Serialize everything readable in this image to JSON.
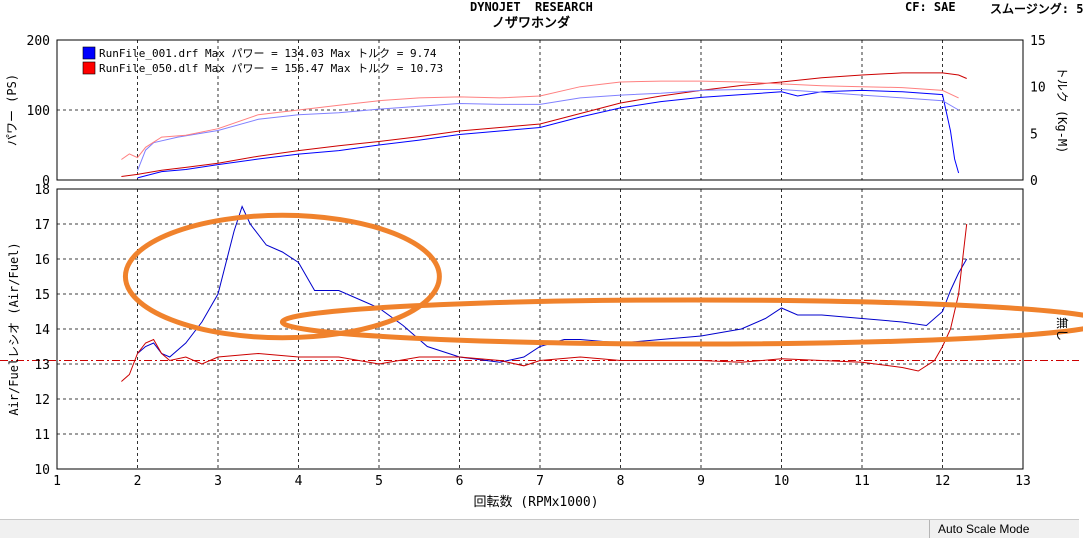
{
  "header": {
    "title": "DYNOJET  RESEARCH",
    "subtitle": "ノザワホンダ",
    "cf_label": "CF: SAE",
    "smoothing_label": "スムージング: 5"
  },
  "legend": [
    {
      "text": "RunFile_001.drf Max パワー = 134.03   Max トルク = 9.74",
      "color": "#0000ff"
    },
    {
      "text": "RunFile_050.dlf Max パワー = 156.47   Max トルク = 10.73",
      "color": "#ff0000"
    }
  ],
  "status_bar": {
    "mode": "Auto Scale Mode"
  },
  "chart_data": [
    {
      "type": "line",
      "panel": "power-torque",
      "ylabel": "パワー (PS)",
      "y2label": "トルク (Kg-M)",
      "ylim": [
        0,
        200
      ],
      "y2lim": [
        0,
        15
      ],
      "yticks": [
        0,
        100,
        200
      ],
      "y2ticks": [
        0,
        5,
        10,
        15
      ],
      "xlim": [
        1,
        13
      ],
      "series": [
        {
          "name": "RunFile_001.drf パワー",
          "axis": "left",
          "color": "#0000ff",
          "width": 1,
          "x": [
            2.0,
            2.3,
            2.6,
            3.0,
            3.5,
            4.0,
            4.5,
            5.0,
            5.5,
            6.0,
            6.5,
            7.0,
            7.5,
            8.0,
            8.5,
            9.0,
            9.5,
            10.0,
            10.2,
            10.5,
            11.0,
            11.5,
            12.0,
            12.1,
            12.15,
            12.2
          ],
          "y": [
            3,
            12,
            15,
            22,
            30,
            37,
            42,
            50,
            57,
            65,
            70,
            75,
            90,
            103,
            112,
            118,
            122,
            126,
            120,
            126,
            128,
            126,
            122,
            70,
            30,
            10
          ]
        },
        {
          "name": "RunFile_050.dlf パワー",
          "axis": "left",
          "color": "#cc0000",
          "width": 1,
          "x": [
            1.8,
            2.0,
            2.3,
            2.6,
            3.0,
            3.5,
            4.0,
            4.5,
            5.0,
            5.5,
            6.0,
            6.5,
            7.0,
            7.5,
            8.0,
            8.5,
            9.0,
            9.5,
            10.0,
            10.5,
            11.0,
            11.5,
            12.0,
            12.2,
            12.3
          ],
          "y": [
            5,
            8,
            14,
            18,
            24,
            34,
            42,
            49,
            55,
            62,
            70,
            75,
            80,
            95,
            110,
            120,
            128,
            135,
            140,
            146,
            150,
            153,
            153,
            150,
            145
          ]
        },
        {
          "name": "RunFile_001.drf トルク",
          "axis": "right",
          "color": "#8080ff",
          "width": 1,
          "x": [
            2.0,
            2.1,
            2.2,
            2.5,
            3.0,
            3.5,
            4.0,
            4.5,
            5.0,
            5.5,
            6.0,
            6.5,
            7.0,
            7.5,
            8.0,
            8.5,
            9.0,
            9.5,
            10.0,
            10.5,
            11.0,
            11.5,
            12.0,
            12.2
          ],
          "y": [
            1,
            3.2,
            4.0,
            4.6,
            5.3,
            6.5,
            7.0,
            7.2,
            7.6,
            7.9,
            8.2,
            8.1,
            8.1,
            8.8,
            9.1,
            9.3,
            9.6,
            9.7,
            9.7,
            9.4,
            9.1,
            8.8,
            8.5,
            7.5
          ]
        },
        {
          "name": "RunFile_050.dlf トルク",
          "axis": "right",
          "color": "#ff8080",
          "width": 1,
          "x": [
            1.8,
            1.9,
            2.0,
            2.1,
            2.3,
            2.6,
            3.0,
            3.5,
            4.0,
            4.5,
            5.0,
            5.5,
            6.0,
            6.5,
            7.0,
            7.5,
            8.0,
            8.5,
            9.0,
            9.5,
            10.0,
            10.5,
            11.0,
            11.5,
            12.0,
            12.2
          ],
          "y": [
            2.2,
            2.8,
            2.4,
            3.5,
            4.6,
            4.8,
            5.5,
            7.0,
            7.5,
            8.0,
            8.5,
            8.8,
            8.9,
            8.8,
            9.0,
            10.0,
            10.5,
            10.6,
            10.6,
            10.5,
            10.3,
            10.1,
            10.0,
            9.9,
            9.6,
            8.8
          ]
        }
      ]
    },
    {
      "type": "line",
      "panel": "air-fuel",
      "ylabel": "Air/Fuelレシオ (Air/Fuel)",
      "right_label": "無し",
      "xlabel": "回転数 (RPMx1000)",
      "ylim": [
        10,
        18
      ],
      "yticks": [
        10,
        11,
        12,
        13,
        14,
        15,
        16,
        17,
        18
      ],
      "xlim": [
        1,
        13
      ],
      "xticks": [
        1,
        2,
        3,
        4,
        5,
        6,
        7,
        8,
        9,
        10,
        11,
        12,
        13
      ],
      "reference_line": {
        "y": 13.1,
        "color": "#cc0000"
      },
      "series": [
        {
          "name": "RunFile_001.drf A/F",
          "color": "#0000cc",
          "width": 1,
          "x": [
            2.0,
            2.1,
            2.2,
            2.3,
            2.4,
            2.6,
            2.8,
            3.0,
            3.2,
            3.3,
            3.4,
            3.6,
            3.8,
            4.0,
            4.2,
            4.5,
            4.8,
            5.0,
            5.3,
            5.6,
            6.0,
            6.5,
            6.8,
            7.0,
            7.3,
            7.5,
            8.0,
            8.5,
            9.0,
            9.5,
            9.8,
            10.0,
            10.2,
            10.5,
            11.0,
            11.5,
            11.8,
            12.0,
            12.1,
            12.2,
            12.3
          ],
          "y": [
            13.3,
            13.5,
            13.6,
            13.3,
            13.2,
            13.6,
            14.2,
            15.0,
            16.8,
            17.5,
            17.0,
            16.4,
            16.2,
            15.9,
            15.1,
            15.1,
            14.8,
            14.6,
            14.1,
            13.5,
            13.2,
            13.05,
            13.2,
            13.5,
            13.7,
            13.7,
            13.6,
            13.7,
            13.8,
            14.0,
            14.3,
            14.6,
            14.4,
            14.4,
            14.3,
            14.2,
            14.1,
            14.5,
            15.1,
            15.6,
            16.0
          ]
        },
        {
          "name": "RunFile_050.dlf A/F",
          "color": "#cc0000",
          "width": 1,
          "x": [
            1.8,
            1.9,
            2.0,
            2.1,
            2.2,
            2.3,
            2.4,
            2.6,
            2.8,
            3.0,
            3.5,
            4.0,
            4.5,
            5.0,
            5.5,
            6.0,
            6.5,
            6.8,
            7.0,
            7.5,
            8.0,
            8.5,
            9.0,
            9.5,
            10.0,
            10.5,
            11.0,
            11.5,
            11.7,
            11.9,
            12.0,
            12.1,
            12.2,
            12.3
          ],
          "y": [
            12.5,
            12.7,
            13.3,
            13.6,
            13.7,
            13.3,
            13.1,
            13.2,
            13.0,
            13.2,
            13.3,
            13.2,
            13.2,
            13.0,
            13.2,
            13.2,
            13.1,
            12.95,
            13.1,
            13.2,
            13.1,
            13.1,
            13.1,
            13.05,
            13.15,
            13.1,
            13.05,
            12.9,
            12.8,
            13.1,
            13.5,
            14.0,
            15.0,
            17.0
          ]
        }
      ],
      "annotations": [
        {
          "shape": "ellipse",
          "color": "#f0822c",
          "cx": 3.8,
          "cy": 15.5,
          "rx": 1.95,
          "ry": 1.75
        },
        {
          "shape": "ellipse",
          "color": "#f0822c",
          "cx": 8.9,
          "cy": 14.2,
          "rx": 5.1,
          "ry": 0.63
        }
      ]
    }
  ]
}
